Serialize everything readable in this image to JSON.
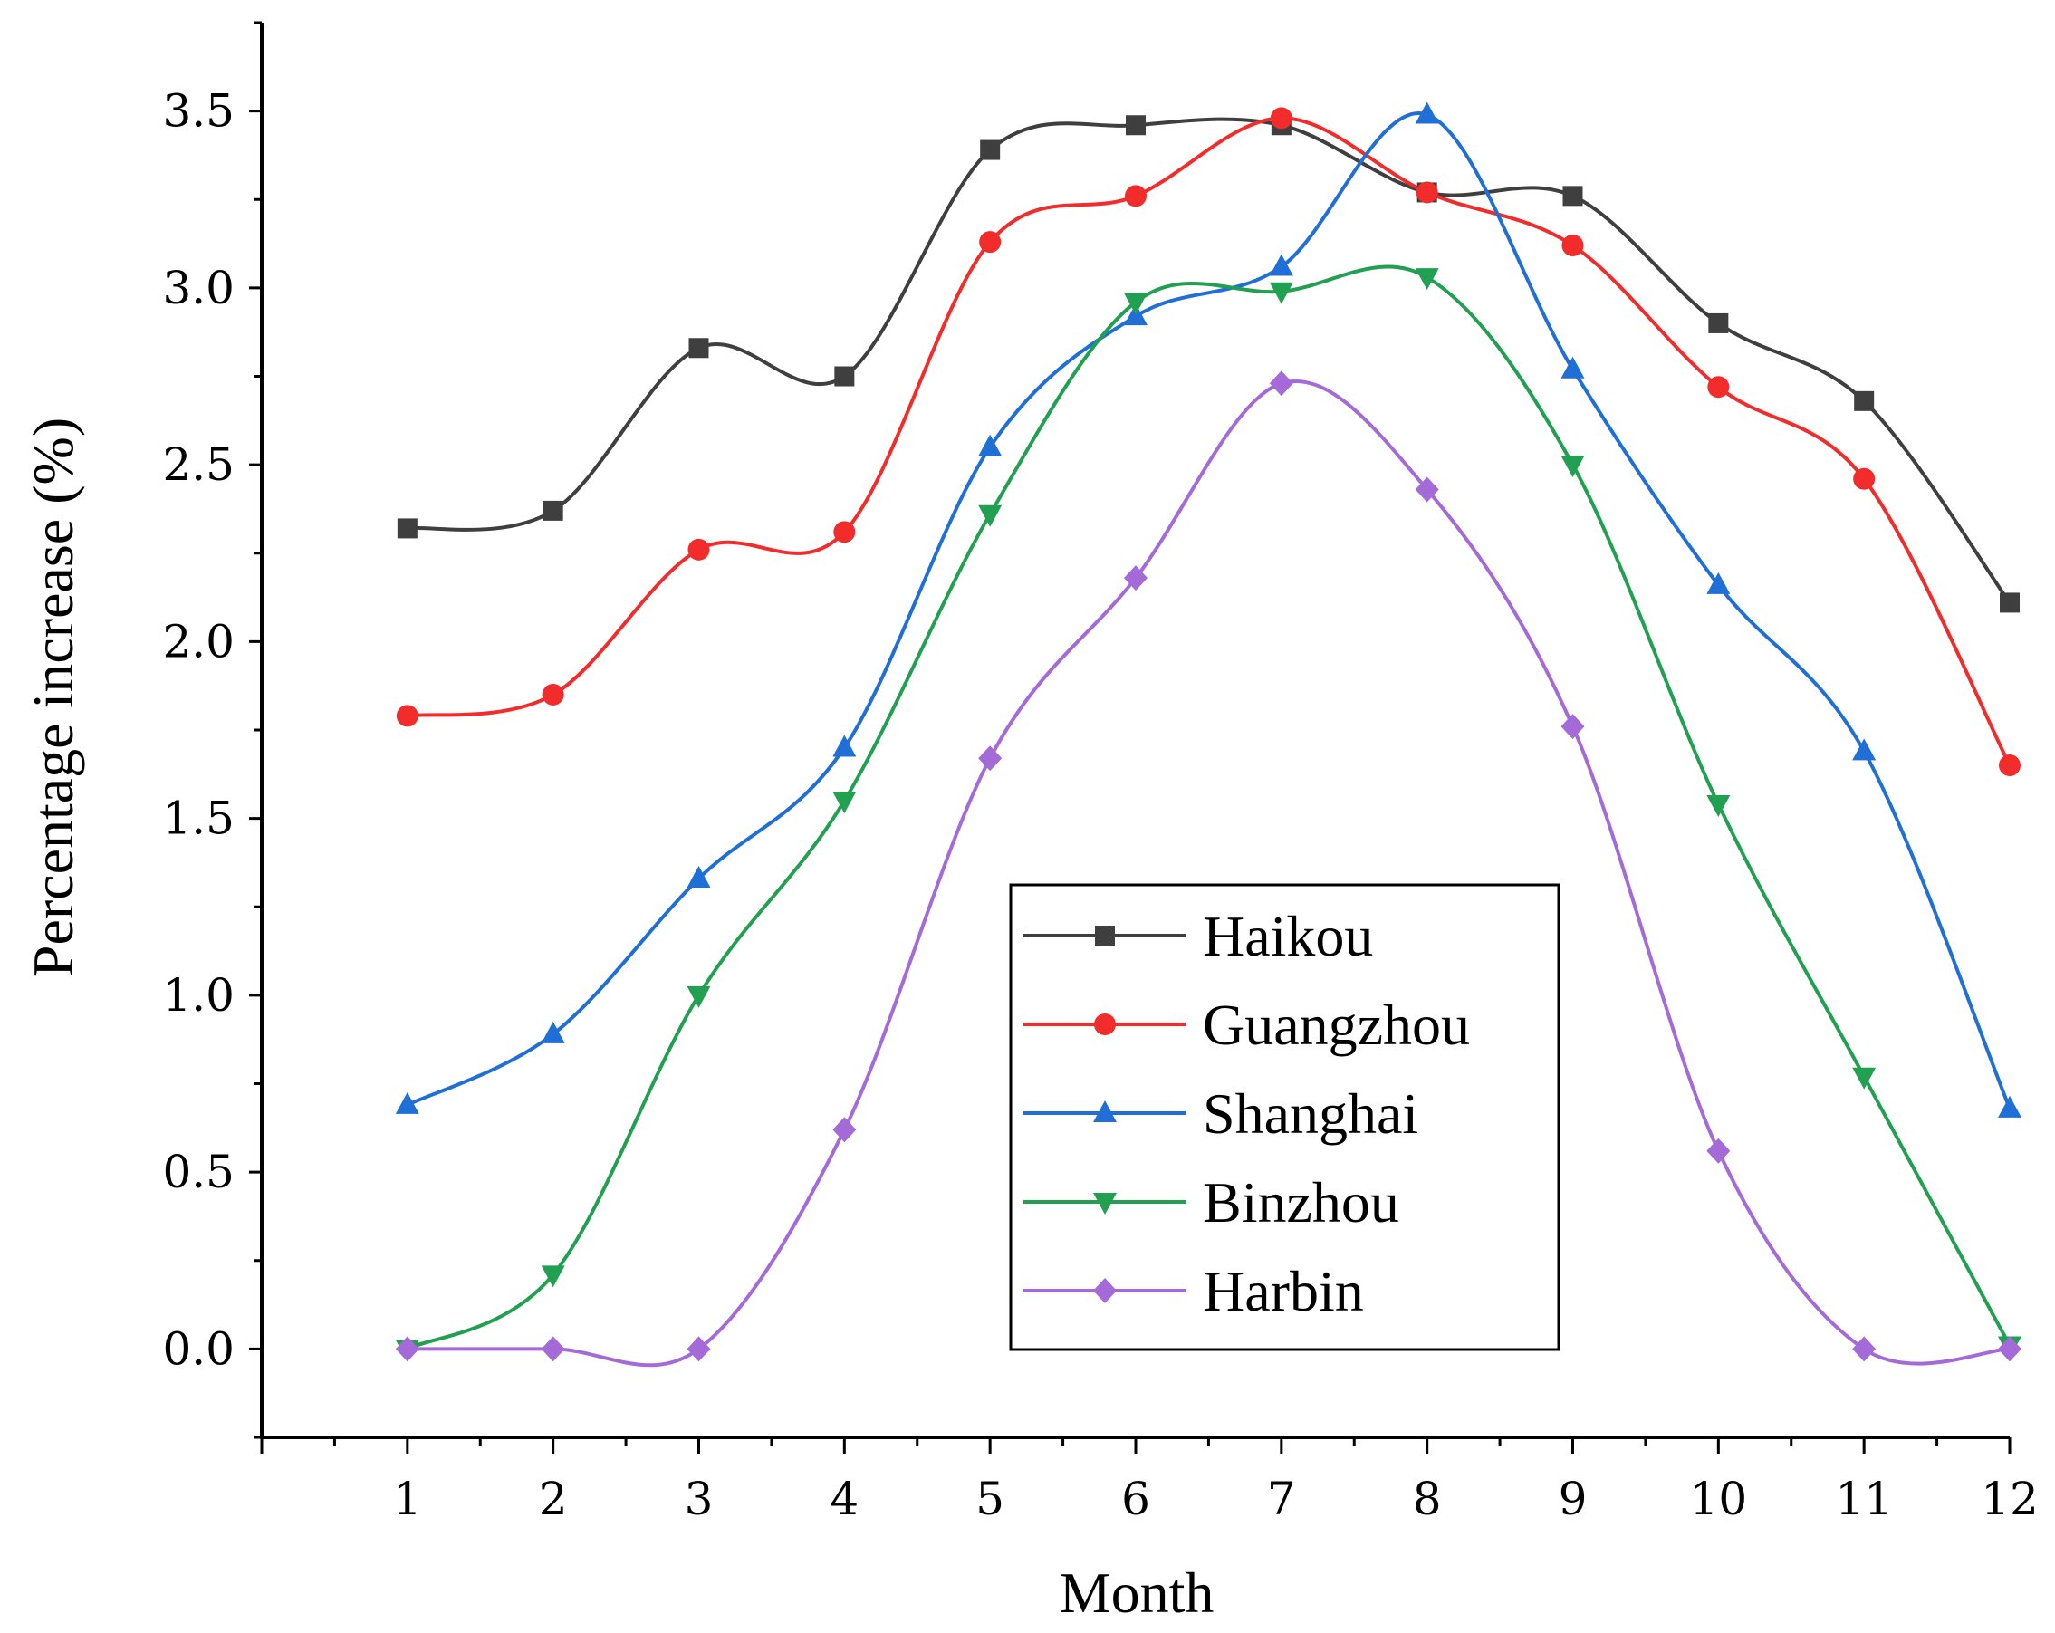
{
  "chart_data": {
    "type": "line",
    "title": "",
    "xlabel": "Month",
    "ylabel": "Percentage increase (%)",
    "x": [
      1,
      2,
      3,
      4,
      5,
      6,
      7,
      8,
      9,
      10,
      11,
      12
    ],
    "x_tick_labels": [
      "1",
      "2",
      "3",
      "4",
      "5",
      "6",
      "7",
      "8",
      "9",
      "10",
      "11",
      "12"
    ],
    "xlim": [
      0,
      12
    ],
    "ylim": [
      -0.25,
      3.75
    ],
    "y_ticks": [
      0.0,
      0.5,
      1.0,
      1.5,
      2.0,
      2.5,
      3.0,
      3.5
    ],
    "y_tick_labels": [
      "0.0",
      "0.5",
      "1.0",
      "1.5",
      "2.0",
      "2.5",
      "3.0",
      "3.5"
    ],
    "grid": false,
    "legend_position": "center-right",
    "series": [
      {
        "name": "Haikou",
        "color": "#3f3f3f",
        "marker": "square",
        "values": [
          2.32,
          2.37,
          2.83,
          2.75,
          3.39,
          3.46,
          3.46,
          3.27,
          3.26,
          2.9,
          2.68,
          2.11
        ]
      },
      {
        "name": "Guangzhou",
        "color": "#f22b2b",
        "marker": "circle",
        "values": [
          1.79,
          1.85,
          2.26,
          2.31,
          3.13,
          3.26,
          3.48,
          3.27,
          3.12,
          2.72,
          2.46,
          1.65
        ]
      },
      {
        "name": "Shanghai",
        "color": "#1f6fd6",
        "marker": "triangle-up",
        "values": [
          0.69,
          0.89,
          1.33,
          1.7,
          2.55,
          2.92,
          3.06,
          3.49,
          2.77,
          2.16,
          1.69,
          0.68
        ]
      },
      {
        "name": "Binzhou",
        "color": "#22a052",
        "marker": "triangle-down",
        "values": [
          0.0,
          0.21,
          1.0,
          1.55,
          2.36,
          2.96,
          2.99,
          3.03,
          2.5,
          1.54,
          0.77,
          0.01
        ]
      },
      {
        "name": "Harbin",
        "color": "#a46bd8",
        "marker": "diamond",
        "values": [
          0.0,
          0.0,
          0.0,
          0.62,
          1.67,
          2.18,
          2.73,
          2.43,
          1.76,
          0.56,
          0.0,
          0.0
        ]
      }
    ]
  }
}
